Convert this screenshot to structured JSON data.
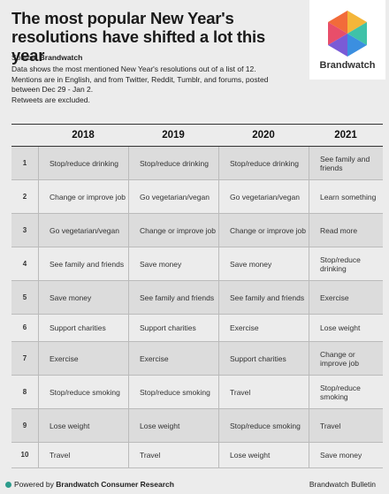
{
  "title": "The most popular New Year's resolutions have shifted a lot this year",
  "logo": {
    "text": "Brandwatch",
    "icon": "brandwatch-hexagon-icon"
  },
  "source_prefix": "Source: ",
  "source_name": "Brandwatch",
  "description": [
    "Data shows the most mentioned New Year's resolutions out of a list of 12.",
    "Mentions are in English, and from Twitter, Reddit, Tumblr, and forums, posted",
    "between Dec 29 - Jan 2.",
    "Retweets are excluded."
  ],
  "footer": {
    "powered_prefix": "Powered by ",
    "powered_name": "Brandwatch Consumer Research",
    "right": "Brandwatch Bulletin"
  },
  "chart_data": {
    "type": "table",
    "columns": [
      "2018",
      "2019",
      "2020",
      "2021"
    ],
    "rows": [
      {
        "rank": "1",
        "cells": [
          "Stop/reduce drinking",
          "Stop/reduce drinking",
          "Stop/reduce drinking",
          "See family and friends"
        ]
      },
      {
        "rank": "2",
        "cells": [
          "Change or improve job",
          "Go vegetarian/vegan",
          "Go vegetarian/vegan",
          "Learn something"
        ]
      },
      {
        "rank": "3",
        "cells": [
          "Go vegetarian/vegan",
          "Change or improve job",
          "Change or improve job",
          "Read more"
        ]
      },
      {
        "rank": "4",
        "cells": [
          "See family and friends",
          "Save money",
          "Save money",
          "Stop/reduce drinking"
        ]
      },
      {
        "rank": "5",
        "cells": [
          "Save money",
          "See family and friends",
          "See family and friends",
          "Exercise"
        ]
      },
      {
        "rank": "6",
        "cells": [
          "Support charities",
          "Support charities",
          "Exercise",
          "Lose weight"
        ]
      },
      {
        "rank": "7",
        "cells": [
          "Exercise",
          "Exercise",
          "Support charities",
          "Change or improve job"
        ]
      },
      {
        "rank": "8",
        "cells": [
          "Stop/reduce smoking",
          "Stop/reduce smoking",
          "Travel",
          "Stop/reduce smoking"
        ]
      },
      {
        "rank": "9",
        "cells": [
          "Lose weight",
          "Lose weight",
          "Stop/reduce smoking",
          "Travel"
        ]
      },
      {
        "rank": "10",
        "cells": [
          "Travel",
          "Travel",
          "Lose weight",
          "Save money"
        ]
      }
    ]
  }
}
